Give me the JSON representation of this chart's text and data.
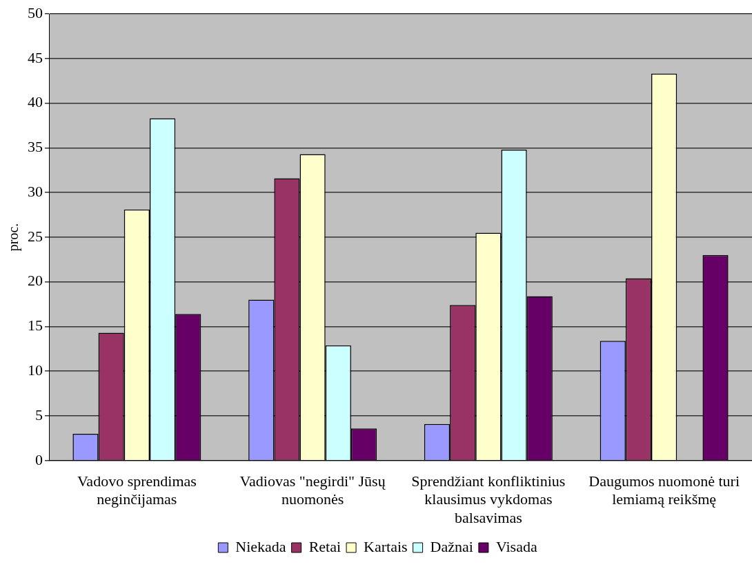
{
  "chart_data": {
    "type": "bar",
    "ylabel": "proc.",
    "categories": [
      "Vadovo sprendimas neginčijamas",
      "Vadiovas \"negirdi\" Jūsų nuomonės",
      "Sprendžiant konfliktinius klausimus vykdomas balsavimas",
      "Daugumos nuomonė turi lemiamą reikšmę"
    ],
    "series": [
      {
        "name": "Niekada",
        "color": "#9999ff",
        "values": [
          3.0,
          18.0,
          4.1,
          13.4
        ]
      },
      {
        "name": "Retai",
        "color": "#993366",
        "values": [
          14.3,
          31.6,
          17.4,
          20.4
        ]
      },
      {
        "name": "Kartais",
        "color": "#ffffcc",
        "values": [
          28.1,
          34.3,
          25.5,
          43.3
        ]
      },
      {
        "name": "Dažnai",
        "color": "#ccffff",
        "values": [
          38.3,
          12.9,
          34.8,
          0
        ]
      },
      {
        "name": "Visada",
        "color": "#660066",
        "values": [
          16.4,
          3.6,
          18.4,
          23.0
        ]
      }
    ],
    "ylim": [
      0,
      50
    ],
    "yticks": [
      0,
      5,
      10,
      15,
      20,
      25,
      30,
      35,
      40,
      45,
      50
    ],
    "grid": "y",
    "legend": "bottom"
  }
}
